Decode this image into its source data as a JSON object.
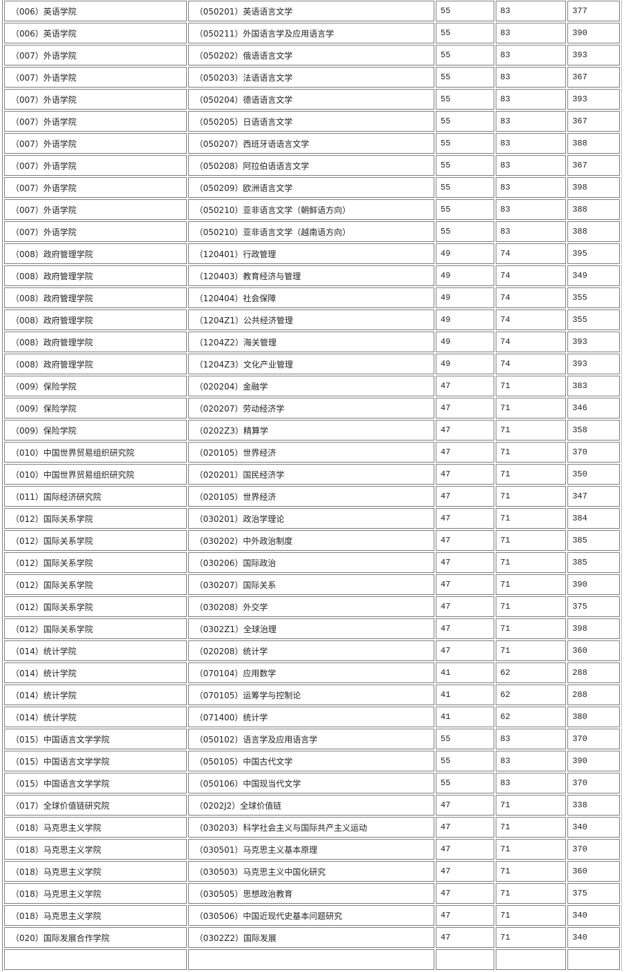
{
  "table": {
    "rows": [
      [
        "（006）英语学院",
        "（050201）英语语言文学",
        "55",
        "83",
        "377"
      ],
      [
        "（006）英语学院",
        "（050211）外国语言学及应用语言学",
        "55",
        "83",
        "390"
      ],
      [
        "（007）外语学院",
        "（050202）俄语语言文学",
        "55",
        "83",
        "393"
      ],
      [
        "（007）外语学院",
        "（050203）法语语言文学",
        "55",
        "83",
        "367"
      ],
      [
        "（007）外语学院",
        "（050204）德语语言文学",
        "55",
        "83",
        "393"
      ],
      [
        "（007）外语学院",
        "（050205）日语语言文学",
        "55",
        "83",
        "367"
      ],
      [
        "（007）外语学院",
        "（050207）西班牙语语言文学",
        "55",
        "83",
        "388"
      ],
      [
        "（007）外语学院",
        "（050208）阿拉伯语语言文学",
        "55",
        "83",
        "367"
      ],
      [
        "（007）外语学院",
        "（050209）欧洲语言文学",
        "55",
        "83",
        "398"
      ],
      [
        "（007）外语学院",
        "（050210）亚非语言文学（朝鲜语方向）",
        "55",
        "83",
        "388"
      ],
      [
        "（007）外语学院",
        "（050210）亚非语言文学（越南语方向）",
        "55",
        "83",
        "388"
      ],
      [
        "（008）政府管理学院",
        "（120401）行政管理",
        "49",
        "74",
        "395"
      ],
      [
        "（008）政府管理学院",
        "（120403）教育经济与管理",
        "49",
        "74",
        "349"
      ],
      [
        "（008）政府管理学院",
        "（120404）社会保障",
        "49",
        "74",
        "355"
      ],
      [
        "（008）政府管理学院",
        "（1204Z1）公共经济管理",
        "49",
        "74",
        "355"
      ],
      [
        "（008）政府管理学院",
        "（1204Z2）海关管理",
        "49",
        "74",
        "393"
      ],
      [
        "（008）政府管理学院",
        "（1204Z3）文化产业管理",
        "49",
        "74",
        "393"
      ],
      [
        "（009）保险学院",
        "（020204）金融学",
        "47",
        "71",
        "383"
      ],
      [
        "（009）保险学院",
        "（020207）劳动经济学",
        "47",
        "71",
        "346"
      ],
      [
        "（009）保险学院",
        "（0202Z3）精算学",
        "47",
        "71",
        "358"
      ],
      [
        "（010）中国世界贸易组织研究院",
        "（020105）世界经济",
        "47",
        "71",
        "370"
      ],
      [
        "（010）中国世界贸易组织研究院",
        "（020201）国民经济学",
        "47",
        "71",
        "350"
      ],
      [
        "（011）国际经济研究院",
        "（020105）世界经济",
        "47",
        "71",
        "347"
      ],
      [
        "（012）国际关系学院",
        "（030201）政治学理论",
        "47",
        "71",
        "384"
      ],
      [
        "（012）国际关系学院",
        "（030202）中外政治制度",
        "47",
        "71",
        "385"
      ],
      [
        "（012）国际关系学院",
        "（030206）国际政治",
        "47",
        "71",
        "385"
      ],
      [
        "（012）国际关系学院",
        "（030207）国际关系",
        "47",
        "71",
        "390"
      ],
      [
        "（012）国际关系学院",
        "（030208）外交学",
        "47",
        "71",
        "375"
      ],
      [
        "（012）国际关系学院",
        "（0302Z1）全球治理",
        "47",
        "71",
        "398"
      ],
      [
        "（014）统计学院",
        "（020208）统计学",
        "47",
        "71",
        "360"
      ],
      [
        "（014）统计学院",
        "（070104）应用数学",
        "41",
        "62",
        "288"
      ],
      [
        "（014）统计学院",
        "（070105）运筹学与控制论",
        "41",
        "62",
        "288"
      ],
      [
        "（014）统计学院",
        "（071400）统计学",
        "41",
        "62",
        "380"
      ],
      [
        "（015）中国语言文学学院",
        "（050102）语言学及应用语言学",
        "55",
        "83",
        "370"
      ],
      [
        "（015）中国语言文学学院",
        "（050105）中国古代文学",
        "55",
        "83",
        "390"
      ],
      [
        "（015）中国语言文学学院",
        "（050106）中国现当代文学",
        "55",
        "83",
        "370"
      ],
      [
        "（017）全球价值链研究院",
        "（0202J2）全球价值链",
        "47",
        "71",
        "338"
      ],
      [
        "（018）马克思主义学院",
        "（030203）科学社会主义与国际共产主义运动",
        "47",
        "71",
        "340"
      ],
      [
        "（018）马克思主义学院",
        "（030501）马克思主义基本原理",
        "47",
        "71",
        "370"
      ],
      [
        "（018）马克思主义学院",
        "（030503）马克思主义中国化研究",
        "47",
        "71",
        "360"
      ],
      [
        "（018）马克思主义学院",
        "（030505）思想政治教育",
        "47",
        "71",
        "375"
      ],
      [
        "（018）马克思主义学院",
        "（030506）中国近现代史基本问题研究",
        "47",
        "71",
        "340"
      ],
      [
        "（020）国际发展合作学院",
        "（0302Z2）国际发展",
        "47",
        "71",
        "340"
      ]
    ]
  }
}
